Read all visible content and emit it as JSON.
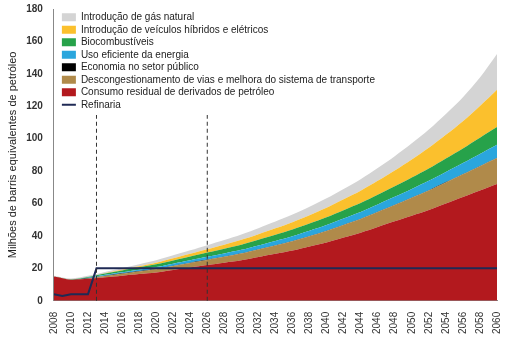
{
  "chart_data": {
    "type": "area",
    "stacked": true,
    "grid": false,
    "legend": "upper left",
    "y_label": "Milhões de barris equivalentes de petróleo",
    "x": [
      2008,
      2010,
      2012,
      2014,
      2016,
      2018,
      2020,
      2022,
      2024,
      2026,
      2028,
      2030,
      2032,
      2034,
      2036,
      2038,
      2040,
      2042,
      2044,
      2046,
      2048,
      2050,
      2052,
      2054,
      2056,
      2058,
      2060
    ],
    "xlim": [
      2008,
      2060
    ],
    "xticks": [
      2008,
      2010,
      2012,
      2014,
      2016,
      2018,
      2020,
      2022,
      2024,
      2026,
      2028,
      2030,
      2032,
      2034,
      2036,
      2038,
      2040,
      2042,
      2044,
      2046,
      2048,
      2050,
      2052,
      2054,
      2056,
      2058,
      2060
    ],
    "ylim": [
      0,
      180
    ],
    "yticks": [
      0,
      20,
      40,
      60,
      80,
      100,
      120,
      140,
      160,
      180
    ],
    "vertical_lines": [
      2013,
      2026
    ],
    "series": [
      {
        "name": "Introdução de gás natural",
        "type": "area",
        "color": "#d4d4d4",
        "values": [
          0.5,
          0.5,
          0.7,
          0.8,
          1,
          1.2,
          1.5,
          1.8,
          2.1,
          2.5,
          2.9,
          3.3,
          3.7,
          4.2,
          4.7,
          5.2,
          5.8,
          6.4,
          7.1,
          7.9,
          8.8,
          9.9,
          11.2,
          12.8,
          14.8,
          17.5,
          22
        ]
      },
      {
        "name": "Introdução de veículos híbridos e elétricos",
        "type": "area",
        "color": "#fbc02d",
        "values": [
          0,
          0,
          0,
          0.2,
          0.4,
          0.7,
          1,
          1.3,
          1.7,
          2.1,
          2.5,
          3,
          3.5,
          4,
          4.6,
          5.2,
          5.9,
          6.7,
          7.6,
          8.6,
          9.8,
          11.2,
          12.8,
          14.6,
          16.8,
          19.6,
          23
        ]
      },
      {
        "name": "Biocombustíveis",
        "type": "area",
        "color": "#27a24a",
        "values": [
          0,
          0.3,
          0.5,
          0.8,
          1.1,
          1.4,
          1.7,
          2,
          2.3,
          2.6,
          2.9,
          3.2,
          3.5,
          3.8,
          4.1,
          4.4,
          4.8,
          5.2,
          5.6,
          6,
          6.5,
          7,
          7.6,
          8.3,
          9,
          10,
          11
        ]
      },
      {
        "name": "Uso eficiente da energia",
        "type": "area",
        "color": "#2aa6dd",
        "values": [
          0,
          0,
          0.2,
          0.5,
          0.7,
          0.9,
          1.1,
          1.3,
          1.5,
          1.7,
          1.9,
          2.1,
          2.3,
          2.6,
          2.9,
          3.2,
          3.5,
          3.8,
          4.1,
          4.5,
          4.9,
          5.3,
          5.8,
          6.3,
          6.8,
          7.4,
          8
        ]
      },
      {
        "name": "Economia no setor público",
        "type": "area",
        "color": "#000000",
        "values": [
          0,
          0,
          0.2,
          0.2,
          0.2,
          0.2,
          0.2,
          0.2,
          0.2,
          0.2,
          0.2,
          0.2,
          0.2,
          0.2,
          0.2,
          0.2,
          0.2,
          0.2,
          0.2,
          0.2,
          0.2,
          0.2,
          0.2,
          0.2,
          0.2,
          0.2,
          0.2
        ]
      },
      {
        "name": "Descongestionamento de vias e melhora do sistema de transporte",
        "type": "area",
        "color": "#b08a4a",
        "values": [
          0,
          0,
          0.3,
          0.8,
          1.2,
          1.6,
          2,
          2.4,
          2.8,
          3.2,
          3.6,
          4.1,
          4.6,
          5.1,
          5.7,
          6.3,
          7,
          7.7,
          8.4,
          9.2,
          10,
          11,
          12,
          13,
          14,
          15,
          16
        ]
      },
      {
        "name": "Consumo residual de derivados de petróleo",
        "type": "area",
        "color": "#b3191e",
        "values": [
          15,
          13,
          13.5,
          14.5,
          15.5,
          16.5,
          17.5,
          19,
          20.5,
          22,
          23.5,
          25,
          27,
          29,
          31,
          33.5,
          36,
          39,
          42,
          45.5,
          49,
          52.5,
          56,
          60,
          64,
          68,
          72
        ]
      },
      {
        "name": "Refinaria",
        "type": "line",
        "color": "#1f2a55",
        "x": [
          2008,
          2009,
          2010,
          2012,
          2013,
          2060
        ],
        "values": [
          4,
          3,
          4,
          4,
          20,
          20
        ]
      }
    ]
  }
}
